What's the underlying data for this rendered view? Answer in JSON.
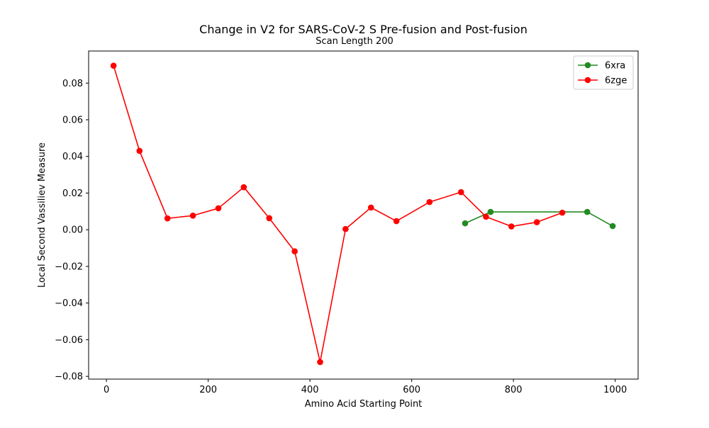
{
  "chart_data": {
    "type": "line",
    "title": "Change in V2 for SARS-CoV-2 S Pre-fusion and Post-fusion",
    "subtitle": "Scan Length 200",
    "xlabel": "Amino Acid Starting Point",
    "ylabel": "Local Second Vassiliev Measure",
    "xlim": [
      -35,
      1045
    ],
    "ylim": [
      -0.0815,
      0.0975
    ],
    "x_ticks": [
      0,
      200,
      400,
      600,
      800,
      1000
    ],
    "x_tick_labels": [
      "0",
      "200",
      "400",
      "600",
      "800",
      "1000"
    ],
    "y_ticks": [
      -0.08,
      -0.06,
      -0.04,
      -0.02,
      0.0,
      0.02,
      0.04,
      0.06,
      0.08
    ],
    "y_tick_labels": [
      "−0.08",
      "−0.06",
      "−0.04",
      "−0.02",
      "0.00",
      "0.02",
      "0.04",
      "0.06",
      "0.08"
    ],
    "grid": false,
    "legend_position": "upper right",
    "series": [
      {
        "name": "6xra",
        "color": "#228b22",
        "x": [
          705,
          755,
          945,
          995
        ],
        "y": [
          0.0035,
          0.0097,
          0.0097,
          0.002
        ]
      },
      {
        "name": "6zge",
        "color": "#ff0000",
        "x": [
          14,
          65,
          120,
          170,
          220,
          270,
          320,
          370,
          420,
          470,
          520,
          570,
          635,
          697,
          746,
          796,
          846,
          896
        ],
        "y": [
          0.0895,
          0.043,
          0.0062,
          0.0077,
          0.0117,
          0.0232,
          0.0063,
          -0.0118,
          -0.0722,
          0.0004,
          0.0121,
          0.0047,
          0.0151,
          0.0205,
          0.0071,
          0.0018,
          0.0041,
          0.0093
        ]
      }
    ]
  }
}
